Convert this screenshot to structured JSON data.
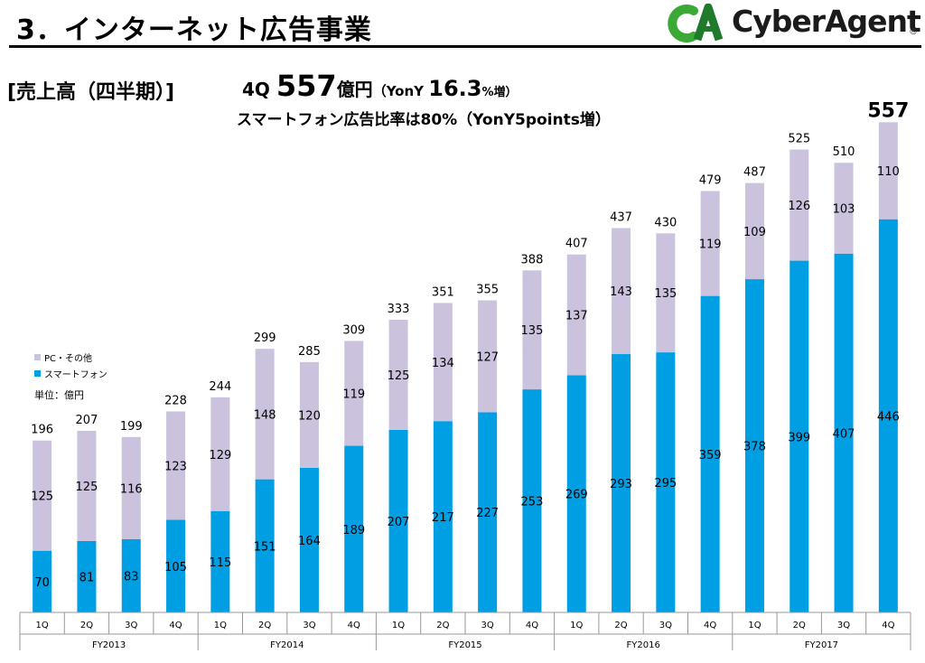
{
  "page": {
    "title": "3．インターネット広告事業",
    "subtitle": "[売上高（四半期）]"
  },
  "logo": {
    "mark": "CA",
    "text": "CyberAgent",
    "reg": "®",
    "colors": {
      "mark_green": "#3aa935",
      "mark_dark": "#1f7a2c",
      "text": "#1b1b1b"
    }
  },
  "headline": {
    "quarter": "4Q ",
    "value": "557",
    "unit": "億円",
    "yoy_open": "（YonY ",
    "yoy_value": "16.3",
    "yoy_close": "%増）",
    "line2": "スマートフォン広告比率は80%（YonY5points増）"
  },
  "legend": {
    "pc_other": "PC・その他",
    "smartphone": "スマートフォン"
  },
  "unit_label": "単位：億円",
  "colors": {
    "smartphone": "#009fe3",
    "pc_other": "#cbc3dd",
    "axis": "#999999"
  },
  "chart_data": {
    "type": "bar",
    "stacked": true,
    "categories": [
      "1Q",
      "2Q",
      "3Q",
      "4Q",
      "1Q",
      "2Q",
      "3Q",
      "4Q",
      "1Q",
      "2Q",
      "3Q",
      "4Q",
      "1Q",
      "2Q",
      "3Q",
      "4Q",
      "1Q",
      "2Q",
      "3Q",
      "4Q"
    ],
    "groups": [
      {
        "label": "FY2013",
        "count": 4
      },
      {
        "label": "FY2014",
        "count": 4
      },
      {
        "label": "FY2015",
        "count": 4
      },
      {
        "label": "FY2016",
        "count": 4
      },
      {
        "label": "FY2017",
        "count": 4
      }
    ],
    "series": [
      {
        "name": "スマートフォン",
        "values": [
          70,
          81,
          83,
          105,
          115,
          151,
          164,
          189,
          207,
          217,
          227,
          253,
          269,
          293,
          295,
          359,
          378,
          399,
          407,
          446
        ]
      },
      {
        "name": "PC・その他",
        "values": [
          125,
          125,
          116,
          123,
          129,
          148,
          120,
          119,
          125,
          134,
          127,
          135,
          137,
          143,
          135,
          119,
          109,
          126,
          103,
          110
        ]
      }
    ],
    "totals": [
      196,
      207,
      199,
      228,
      244,
      299,
      285,
      309,
      333,
      351,
      355,
      388,
      407,
      437,
      430,
      479,
      487,
      525,
      510,
      557
    ],
    "ylim": [
      0,
      560
    ],
    "grid": false,
    "legend_position": "left"
  }
}
